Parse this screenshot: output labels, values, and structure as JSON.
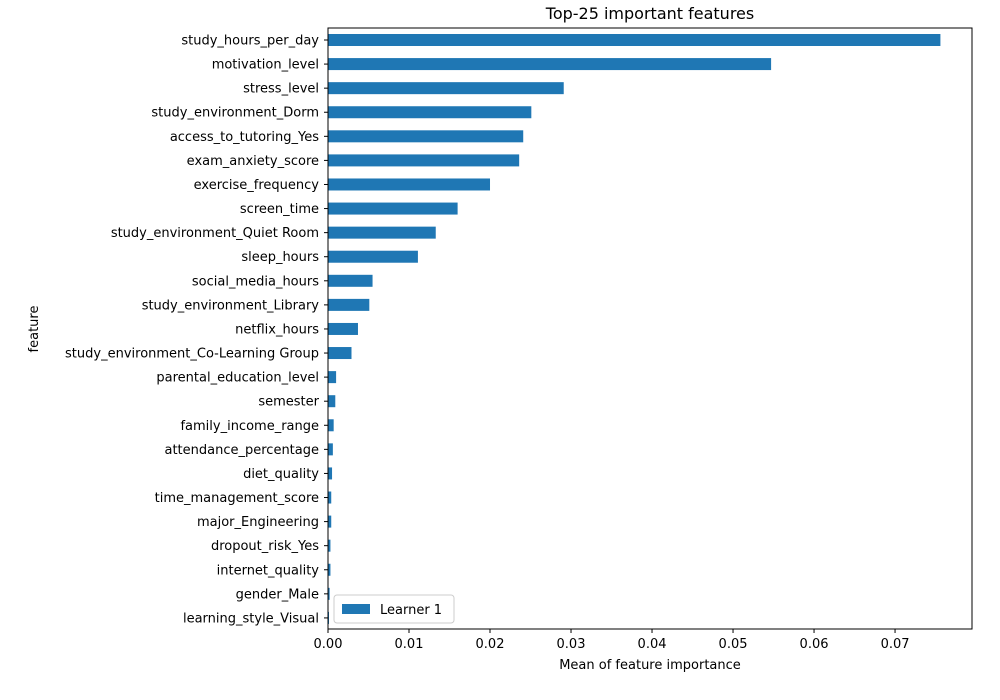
{
  "chart_data": {
    "type": "bar",
    "orientation": "horizontal",
    "title": "Top-25 important features",
    "xlabel": "Mean of feature importance",
    "ylabel": "feature",
    "xlim": [
      0,
      0.0795
    ],
    "xticks": [
      0.0,
      0.01,
      0.02,
      0.03,
      0.04,
      0.05,
      0.06,
      0.07
    ],
    "xtick_labels": [
      "0.00",
      "0.01",
      "0.02",
      "0.03",
      "0.04",
      "0.05",
      "0.06",
      "0.07"
    ],
    "grid": false,
    "legend": "bottom-left",
    "colors": {
      "bar": "#1f77b4"
    },
    "categories": [
      "study_hours_per_day",
      "motivation_level",
      "stress_level",
      "study_environment_Dorm",
      "access_to_tutoring_Yes",
      "exam_anxiety_score",
      "exercise_frequency",
      "screen_time",
      "study_environment_Quiet Room",
      "sleep_hours",
      "social_media_hours",
      "study_environment_Library",
      "netflix_hours",
      "study_environment_Co-Learning Group",
      "parental_education_level",
      "semester",
      "family_income_range",
      "attendance_percentage",
      "diet_quality",
      "time_management_score",
      "major_Engineering",
      "dropout_risk_Yes",
      "internet_quality",
      "gender_Male",
      "learning_style_Visual"
    ],
    "series": [
      {
        "name": "Learner 1",
        "values": [
          0.0756,
          0.0547,
          0.0291,
          0.0251,
          0.0241,
          0.0236,
          0.02,
          0.016,
          0.0133,
          0.0111,
          0.0055,
          0.0051,
          0.0037,
          0.0029,
          0.001,
          0.0009,
          0.0007,
          0.0006,
          0.0005,
          0.0004,
          0.0004,
          0.0003,
          0.0003,
          0.0002,
          0.0001
        ]
      }
    ]
  }
}
